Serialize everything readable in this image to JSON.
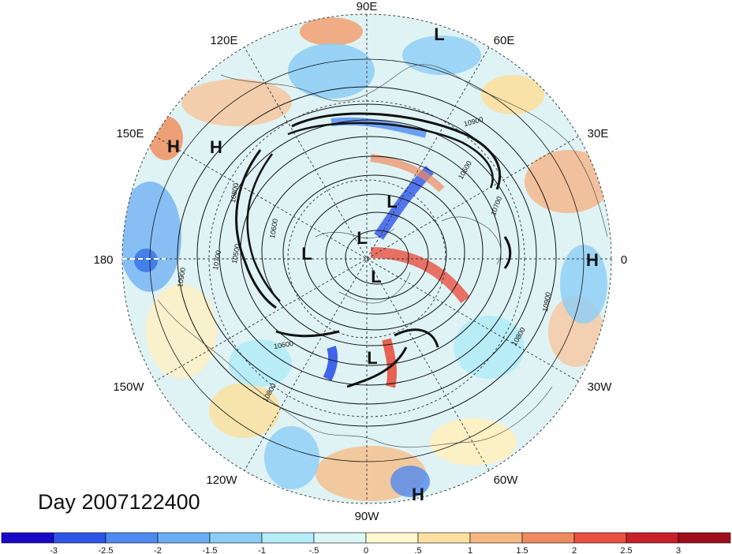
{
  "title": "Day 2007122400",
  "projection": "north-polar-stereographic",
  "longitude_labels": [
    {
      "lon": 90,
      "label": "90E"
    },
    {
      "lon": 60,
      "label": "60E"
    },
    {
      "lon": 30,
      "label": "30E"
    },
    {
      "lon": 0,
      "label": "0"
    },
    {
      "lon": -30,
      "label": "30W"
    },
    {
      "lon": -60,
      "label": "60W"
    },
    {
      "lon": -90,
      "label": "90W"
    },
    {
      "lon": -120,
      "label": "120W"
    },
    {
      "lon": -150,
      "label": "150W"
    },
    {
      "lon": 180,
      "label": "180"
    },
    {
      "lon": 150,
      "label": "150E"
    },
    {
      "lon": 120,
      "label": "120E"
    }
  ],
  "pressure_centers": [
    {
      "type": "L",
      "name": "low-60e-rim"
    },
    {
      "type": "H",
      "name": "high-150e-a"
    },
    {
      "type": "H",
      "name": "high-150e-b"
    },
    {
      "type": "L",
      "name": "low-central-north"
    },
    {
      "type": "L",
      "name": "low-central-pole"
    },
    {
      "type": "L",
      "name": "low-180-side"
    },
    {
      "type": "L",
      "name": "low-central-south"
    },
    {
      "type": "L",
      "name": "low-hudson"
    },
    {
      "type": "H",
      "name": "high-0-rim"
    },
    {
      "type": "H",
      "name": "high-90w-rim"
    }
  ],
  "contour_labels": [
    "10900",
    "10500",
    "10700",
    "10900",
    "10800",
    "10800",
    "10700",
    "10500",
    "10600",
    "10900",
    "10800",
    "10600"
  ],
  "colorbar": {
    "ticks": [
      "-3",
      "-2.5",
      "-2",
      "-1.5",
      "-1",
      "-.5",
      "0",
      ".5",
      "1",
      "1.5",
      "2",
      "2.5",
      "3"
    ],
    "colors": [
      "#1a08c8",
      "#2f55e8",
      "#4f8af0",
      "#6aaef4",
      "#8ccdf6",
      "#b4ecf8",
      "#dcf7f8",
      "#fff8d0",
      "#fbe0a0",
      "#f6b882",
      "#f08a60",
      "#e85040",
      "#c8202a",
      "#a00d1c"
    ]
  }
}
